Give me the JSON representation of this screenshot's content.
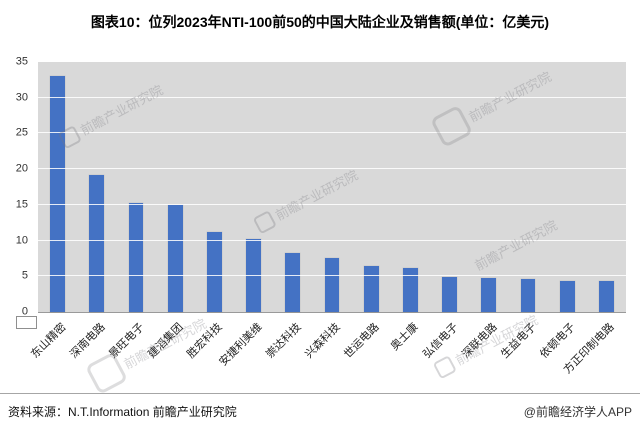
{
  "title": "图表10：位列2023年NTI-100前50的中国大陆企业及销售额(单位：亿美元)",
  "chart_data": {
    "type": "bar",
    "title": "图表10：位列2023年NTI-100前50的中国大陆企业及销售额(单位：亿美元)",
    "categories": [
      "东山精密",
      "深南电路",
      "景旺电子",
      "建滔集团",
      "胜宏科技",
      "安捷利美维",
      "崇达科技",
      "兴森科技",
      "世运电路",
      "奥士康",
      "弘信电子",
      "深联电路",
      "生益电子",
      "依顿电子",
      "方正印制电路"
    ],
    "values": [
      33,
      19.2,
      15.2,
      15,
      11.2,
      10.2,
      8.2,
      7.5,
      6.4,
      6.1,
      4.9,
      4.8,
      4.6,
      4.4,
      4.3
    ],
    "xlabel": "",
    "ylabel": "",
    "ylim": [
      0,
      35
    ],
    "ytick_step": 5,
    "grid": true,
    "legend_position": "none",
    "bar_color": "#4472C4",
    "plot_bg": "#D9D9D9"
  },
  "watermark": {
    "text": "前瞻产业研究院"
  },
  "footer": {
    "source": "资料来源：N.T.Information 前瞻产业研究院",
    "credit": "@前瞻经济学人APP"
  }
}
